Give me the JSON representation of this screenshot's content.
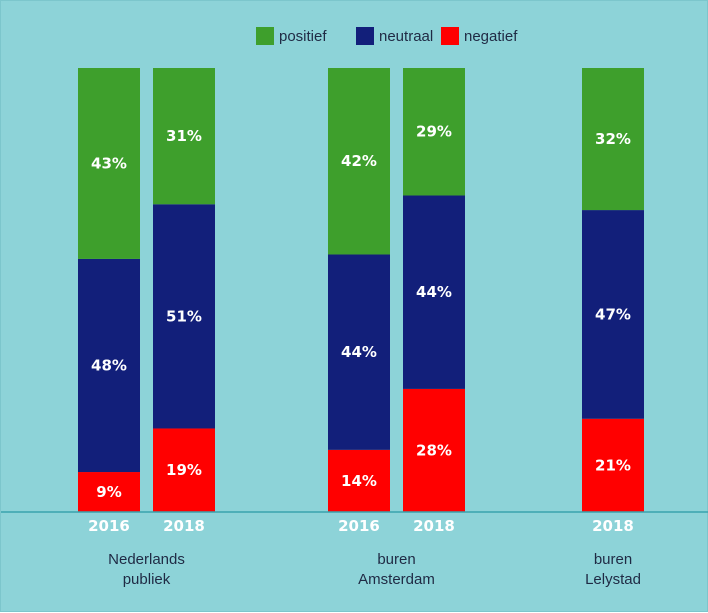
{
  "chart_data": {
    "type": "bar",
    "stacked": true,
    "legend_position": "top",
    "grid": false,
    "colors": {
      "positief": "#3e9f2c",
      "neutraal": "#121f7a",
      "negatief": "#ff0000",
      "background": "#8dd3d8",
      "baseline": "#3aa3ad"
    },
    "legend": [
      {
        "key": "positief",
        "label": "positief"
      },
      {
        "key": "neutraal",
        "label": "neutraal"
      },
      {
        "key": "negatief",
        "label": "negatief"
      }
    ],
    "groups": [
      {
        "label_lines": [
          "Nederlands",
          "publiek"
        ],
        "bars": [
          {
            "year": "2016",
            "negatief": 9,
            "neutraal": 48,
            "positief": 43,
            "labels": {
              "negatief": "9%",
              "neutraal": "48%",
              "positief": "43%"
            }
          },
          {
            "year": "2018",
            "negatief": 19,
            "neutraal": 51,
            "positief": 31,
            "labels": {
              "negatief": "19%",
              "neutraal": "51%",
              "positief": "31%"
            }
          }
        ]
      },
      {
        "label_lines": [
          "buren",
          "Amsterdam"
        ],
        "bars": [
          {
            "year": "2016",
            "negatief": 14,
            "neutraal": 44,
            "positief": 42,
            "labels": {
              "negatief": "14%",
              "neutraal": "44%",
              "positief": "42%"
            }
          },
          {
            "year": "2018",
            "negatief": 28,
            "neutraal": 44,
            "positief": 29,
            "labels": {
              "negatief": "28%",
              "neutraal": "44%",
              "positief": "29%"
            }
          }
        ]
      },
      {
        "label_lines": [
          "buren",
          "Lelystad"
        ],
        "bars": [
          {
            "year": "2018",
            "negatief": 21,
            "neutraal": 47,
            "positief": 32,
            "labels": {
              "negatief": "21%",
              "neutraal": "47%",
              "positief": "32%"
            }
          }
        ]
      }
    ]
  }
}
